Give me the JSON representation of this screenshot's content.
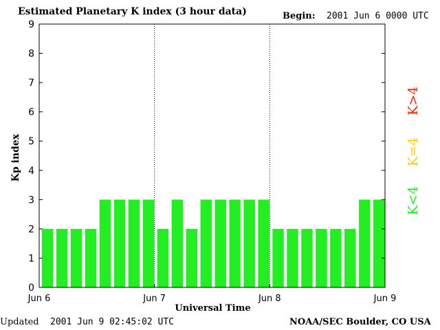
{
  "header": {
    "title": "Estimated Planetary K index (3 hour data)",
    "begin_label": "Begin:",
    "begin_value": "2001 Jun 6 0000 UTC"
  },
  "footer": {
    "updated_label": "Updated",
    "updated_value": "2001 Jun  9 02:45:02 UTC",
    "source": "NOAA/SEC Boulder, CO USA"
  },
  "legend": {
    "low": {
      "label": "K<4",
      "color": "#22ee22"
    },
    "mid": {
      "label": "K=4",
      "color": "#ffcc00"
    },
    "high": {
      "label": "K>4",
      "color": "#ff2200"
    }
  },
  "chart_data": {
    "type": "bar",
    "title": "Estimated Planetary K index (3 hour data)",
    "xlabel": "Universal Time",
    "ylabel": "Kp index",
    "ylim": [
      0,
      9
    ],
    "yticks": [
      "0",
      "1",
      "2",
      "3",
      "4",
      "5",
      "6",
      "7",
      "8",
      "9"
    ],
    "x_ticks": [
      "Jun 6",
      "Jun 7",
      "Jun 8",
      "Jun 9"
    ],
    "day_separators": "dotted",
    "bar_color": "#22ee22",
    "values": [
      2,
      2,
      2,
      2,
      3,
      3,
      3,
      3,
      2,
      3,
      2,
      3,
      3,
      3,
      3,
      3,
      2,
      2,
      2,
      2,
      2,
      2,
      3,
      3
    ]
  }
}
